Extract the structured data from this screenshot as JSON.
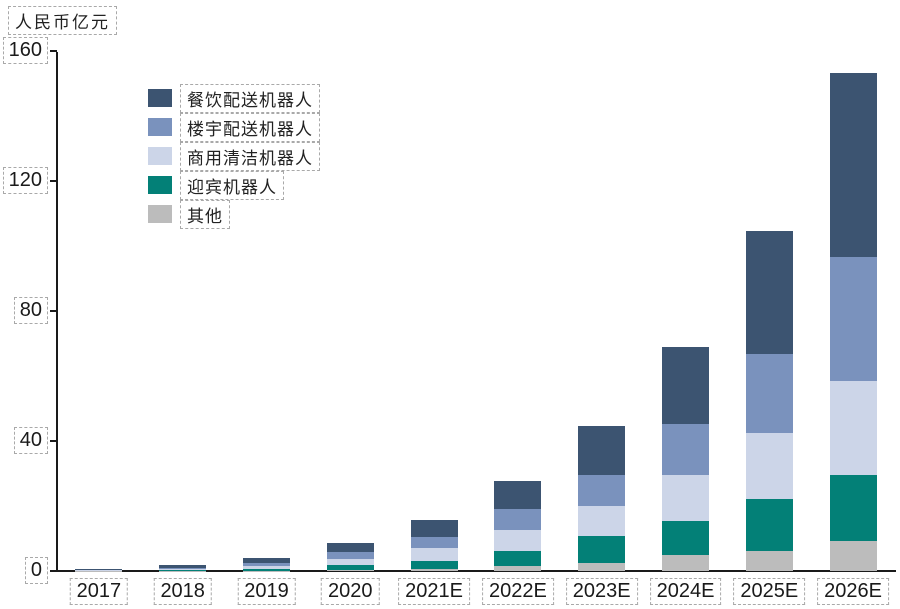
{
  "title": "人民币亿元",
  "chart_data": {
    "type": "bar",
    "subtype": "stacked-vertical",
    "title": "",
    "unit_label": "人民币亿元",
    "xlabel": "",
    "ylabel": "人民币亿元",
    "ylim": [
      0,
      160
    ],
    "yticks": [
      0,
      40,
      80,
      120,
      160
    ],
    "grid": false,
    "legend_position": "inside-top-left",
    "categories": [
      "2017",
      "2018",
      "2019",
      "2020",
      "2021E",
      "2022E",
      "2023E",
      "2024E",
      "2025E",
      "2026E"
    ],
    "series": [
      {
        "name": "餐饮配送机器人",
        "color": "#3c5471",
        "values": [
          0.2,
          0.8,
          1.6,
          2.8,
          5.2,
          8.4,
          15.2,
          23.6,
          37.9,
          56.5
        ]
      },
      {
        "name": "楼宇配送机器人",
        "color": "#7a92bd",
        "values": [
          0.1,
          0.45,
          1.0,
          2.0,
          3.6,
          6.7,
          9.6,
          15.7,
          24.4,
          38.3
        ]
      },
      {
        "name": "商用清洁机器人",
        "color": "#ccd5e8",
        "values": [
          0.1,
          0.3,
          0.8,
          1.9,
          3.8,
          6.2,
          9.2,
          14.0,
          20.4,
          28.8
        ]
      },
      {
        "name": "迎宾机器人",
        "color": "#038077",
        "values": [
          0.05,
          0.2,
          0.5,
          1.4,
          2.7,
          4.8,
          8.2,
          10.5,
          16.0,
          20.3
        ]
      },
      {
        "name": "其他",
        "color": "#bcbcbc",
        "values": [
          0.05,
          0.05,
          0.1,
          0.4,
          0.5,
          1.5,
          2.5,
          5.0,
          6.0,
          9.3
        ]
      }
    ],
    "totals": [
      0.5,
      1.8,
      4.0,
      8.5,
      15.8,
      27.6,
      44.7,
      68.8,
      104.7,
      153.2
    ]
  }
}
